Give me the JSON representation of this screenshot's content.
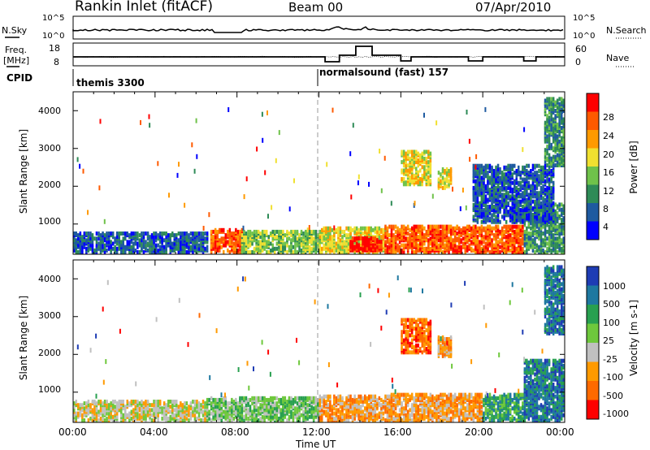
{
  "header": {
    "title": "Rankin Inlet (fitACF)",
    "beam": "Beam 00",
    "date": "07/Apr/2010"
  },
  "status_panels": {
    "nsky_label": "N.Sky",
    "nsky_ticks": [
      "10^5",
      "10^0"
    ],
    "nsearch_label": "N.Search",
    "nsearch_ticks": [
      "10^5",
      "10^0"
    ],
    "freq_label_line1": "Freq.",
    "freq_label_line2": "[MHz]",
    "freq_ticks": [
      "18",
      "8"
    ],
    "nave_label": "Nave",
    "nave_ticks": [
      "60",
      "0"
    ],
    "cpid_label": "CPID",
    "cpid_segments": [
      {
        "label": "themis 3300",
        "start_hour": 0
      },
      {
        "label": "normalsound (fast) 157",
        "start_hour": 12
      }
    ]
  },
  "x_axis": {
    "title": "Time UT",
    "ticks": [
      "00:00",
      "04:00",
      "08:00",
      "12:00",
      "16:00",
      "20:00",
      "00:00"
    ]
  },
  "colors": {
    "power_scale": [
      "#0000ff",
      "#1e5aa0",
      "#2e8b57",
      "#6fc24a",
      "#f0e030",
      "#ff9a00",
      "#ff5a00",
      "#ff0000"
    ],
    "velocity_scale": [
      "#1e3cb4",
      "#1e78a0",
      "#28a050",
      "#6ec83c",
      "#c0c0c0",
      "#ff9a00",
      "#ff6a00",
      "#ff0000"
    ]
  },
  "chart_data": [
    {
      "type": "heatmap",
      "name": "power",
      "xlabel": "",
      "ylabel": "Slant Range [km]",
      "xlim": [
        0,
        24
      ],
      "ylim": [
        200,
        4500
      ],
      "yticks": [
        "1000",
        "2000",
        "3000",
        "4000"
      ],
      "colorbar_label": "Power [dB]",
      "colorbar_ticks": [
        "4",
        "8",
        "12",
        "16",
        "20",
        "24",
        "28"
      ],
      "regions": [
        {
          "t0": 0.0,
          "t1": 6.5,
          "r0": 200,
          "r1": 700,
          "level": 1
        },
        {
          "t0": 6.7,
          "t1": 8.2,
          "r0": 200,
          "r1": 800,
          "level": 6
        },
        {
          "t0": 8.2,
          "t1": 12.0,
          "r0": 200,
          "r1": 750,
          "level": 3
        },
        {
          "t0": 12.0,
          "t1": 15.2,
          "r0": 200,
          "r1": 850,
          "level": 4
        },
        {
          "t0": 13.5,
          "t1": 15.0,
          "r0": 250,
          "r1": 600,
          "level": 7
        },
        {
          "t0": 15.2,
          "t1": 22.0,
          "r0": 200,
          "r1": 900,
          "level": 6
        },
        {
          "t0": 22.0,
          "t1": 24.0,
          "r0": 200,
          "r1": 1500,
          "level": 2
        },
        {
          "t0": 16.0,
          "t1": 17.5,
          "r0": 2000,
          "r1": 2900,
          "level": 4
        },
        {
          "t0": 17.8,
          "t1": 18.5,
          "r0": 1900,
          "r1": 2400,
          "level": 4
        },
        {
          "t0": 19.5,
          "t1": 23.5,
          "r0": 1000,
          "r1": 2500,
          "level": 1
        },
        {
          "t0": 23.0,
          "t1": 24.0,
          "r0": 2500,
          "r1": 4300,
          "level": 2
        }
      ]
    },
    {
      "type": "heatmap",
      "name": "velocity",
      "xlabel": "Time UT",
      "ylabel": "Slant Range [km]",
      "xlim": [
        0,
        24
      ],
      "ylim": [
        200,
        4500
      ],
      "yticks": [
        "1000",
        "2000",
        "3000",
        "4000"
      ],
      "colorbar_label": "Velocity [m s-1]",
      "colorbar_ticks": [
        "1000",
        "500",
        "100",
        "25",
        "-25",
        "-100",
        "-500",
        "-1000"
      ],
      "regions": [
        {
          "t0": 0.0,
          "t1": 6.5,
          "r0": 200,
          "r1": 700,
          "level": 4
        },
        {
          "t0": 6.5,
          "t1": 12.0,
          "r0": 200,
          "r1": 800,
          "level": 3
        },
        {
          "t0": 12.0,
          "t1": 15.5,
          "r0": 200,
          "r1": 850,
          "level": 5
        },
        {
          "t0": 15.5,
          "t1": 20.0,
          "r0": 200,
          "r1": 900,
          "level": 5
        },
        {
          "t0": 20.0,
          "t1": 22.0,
          "r0": 200,
          "r1": 900,
          "level": 2
        },
        {
          "t0": 22.0,
          "t1": 24.0,
          "r0": 200,
          "r1": 1800,
          "level": 1
        },
        {
          "t0": 16.0,
          "t1": 17.5,
          "r0": 2000,
          "r1": 2900,
          "level": 6
        },
        {
          "t0": 17.8,
          "t1": 18.5,
          "r0": 1900,
          "r1": 2400,
          "level": 5
        },
        {
          "t0": 23.0,
          "t1": 24.0,
          "r0": 2500,
          "r1": 4300,
          "level": 1
        }
      ]
    }
  ]
}
